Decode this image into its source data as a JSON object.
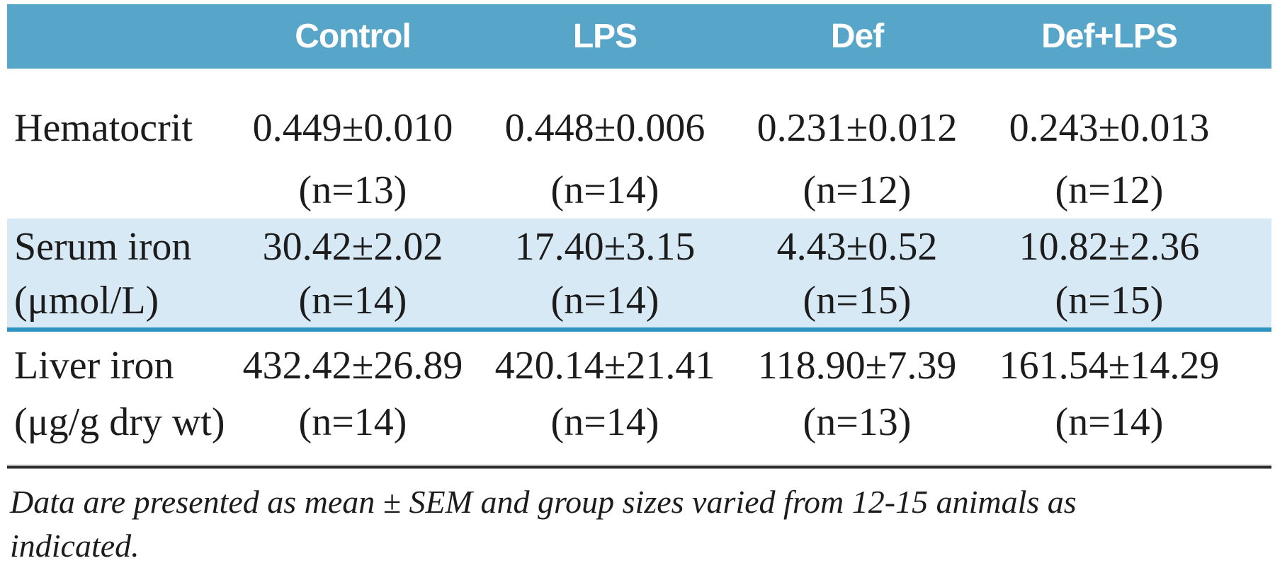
{
  "table": {
    "columns": [
      "",
      "Control",
      "LPS",
      "Def",
      "Def+LPS"
    ],
    "rows": [
      {
        "label_line1": "Hematocrit",
        "label_line2": "",
        "cells": [
          {
            "value": "0.449±0.010",
            "n": "(n=13)"
          },
          {
            "value": "0.448±0.006",
            "n": "(n=14)"
          },
          {
            "value": "0.231±0.012",
            "n": "(n=12)"
          },
          {
            "value": "0.243±0.013",
            "n": "(n=12)"
          }
        ]
      },
      {
        "label_line1": "Serum iron",
        "label_line2": "(μmol/L)",
        "cells": [
          {
            "value": "30.42±2.02",
            "n": "(n=14)"
          },
          {
            "value": "17.40±3.15",
            "n": "(n=14)"
          },
          {
            "value": "4.43±0.52",
            "n": "(n=15)"
          },
          {
            "value": "10.82±2.36",
            "n": "(n=15)"
          }
        ]
      },
      {
        "label_line1": "Liver iron",
        "label_line2": "(μg/g dry wt)",
        "cells": [
          {
            "value": "432.42±26.89",
            "n": "(n=14)"
          },
          {
            "value": "420.14±21.41",
            "n": "(n=14)"
          },
          {
            "value": "118.90±7.39",
            "n": "(n=13)"
          },
          {
            "value": "161.54±14.29",
            "n": "(n=14)"
          }
        ]
      }
    ]
  },
  "footnote": {
    "line1": "Data are presented as mean ± SEM and group sizes varied from 12-15 animals as",
    "line2": "indicated."
  },
  "colors": {
    "header_bg": "#57a5c8",
    "stripe_bg": "#d8e9f6",
    "stripe_border": "#2d93c1",
    "rule_dark": "#2f2f2f",
    "text": "#1c1c1c",
    "header_text": "#ffffff"
  }
}
